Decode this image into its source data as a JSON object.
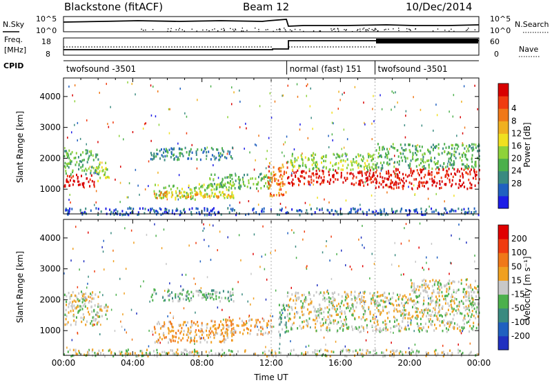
{
  "header": {
    "station": "Blackstone (fitACF)",
    "beam": "Beam 12",
    "date": "10/Dec/2014"
  },
  "params": {
    "nsky_label": "N.Sky",
    "nsearch_label": "N.Search",
    "nsky_ticks": [
      "10^5",
      "10^0"
    ],
    "nsearch_ticks": [
      "10^5",
      "10^0"
    ],
    "freq_label_line1": "Freq.",
    "freq_label_line2": "[MHz]",
    "freq_ticks": [
      "18",
      "8"
    ],
    "nave_label": "Nave",
    "nave_ticks": [
      "60",
      "0"
    ],
    "cpid_label": "CPID",
    "cpid_segments": [
      {
        "start_hr": 0,
        "end_hr": 12.9,
        "label": "twofsound -3501"
      },
      {
        "start_hr": 12.9,
        "end_hr": 18,
        "label": "normal (fast) 151"
      },
      {
        "start_hr": 18,
        "end_hr": 24,
        "label": "twofsound -3501"
      }
    ]
  },
  "chart_data": [
    {
      "type": "heatmap",
      "xlabel": "",
      "ylabel": "Slant Range [km]",
      "xlim": [
        0,
        24
      ],
      "ylim": [
        200,
        4600
      ],
      "y_ticks": [
        "1000",
        "2000",
        "3000",
        "4000"
      ],
      "y_tick_values": [
        1000,
        2000,
        3000,
        4000
      ],
      "colorbar": {
        "label": "Power [dB]",
        "colors": [
          "#1c1ce6",
          "#2060c0",
          "#3a8a80",
          "#4cb04c",
          "#8ed23a",
          "#f0e020",
          "#f0b020",
          "#f07818",
          "#f03c10",
          "#d80000"
        ],
        "tick_labels": [
          "4",
          "8",
          "12",
          "16",
          "20",
          "24",
          "28"
        ]
      },
      "regions": [
        {
          "t0": 0.0,
          "t1": 1.8,
          "r0": 1100,
          "r1": 1500,
          "level": 9
        },
        {
          "t0": 0.0,
          "t1": 2.0,
          "r0": 1500,
          "r1": 2300,
          "level": 3
        },
        {
          "t0": 1.8,
          "t1": 2.6,
          "r0": 1300,
          "r1": 1900,
          "level": 4
        },
        {
          "t0": 5.0,
          "t1": 9.8,
          "r0": 1980,
          "r1": 2380,
          "level": 2
        },
        {
          "t0": 5.2,
          "t1": 9.8,
          "r0": 700,
          "r1": 1200,
          "level": 4
        },
        {
          "t0": 5.2,
          "t1": 9.8,
          "r0": 750,
          "r1": 950,
          "level": 6
        },
        {
          "t0": 8.2,
          "t1": 12.0,
          "r0": 1050,
          "r1": 1550,
          "level": 3
        },
        {
          "t0": 11.8,
          "t1": 12.9,
          "r0": 800,
          "r1": 1900,
          "level": 7
        },
        {
          "t0": 12.9,
          "t1": 18.0,
          "r0": 1150,
          "r1": 1650,
          "level": 9
        },
        {
          "t0": 12.9,
          "t1": 18.0,
          "r0": 1650,
          "r1": 2200,
          "level": 4
        },
        {
          "t0": 18.0,
          "t1": 24.0,
          "r0": 1050,
          "r1": 1700,
          "level": 9
        },
        {
          "t0": 18.0,
          "t1": 24.0,
          "r0": 1700,
          "r1": 2500,
          "level": 3
        },
        {
          "t0": 0.0,
          "t1": 24.0,
          "r0": 200,
          "r1": 420,
          "level": 1
        }
      ]
    },
    {
      "type": "heatmap",
      "xlabel": "Time UT",
      "ylabel": "Slant Range [km]",
      "xlim": [
        0,
        24
      ],
      "ylim": [
        200,
        4600
      ],
      "x_ticks": [
        "00:00",
        "04:00",
        "08:00",
        "12:00",
        "16:00",
        "20:00",
        "00:00"
      ],
      "x_tick_values": [
        0,
        4,
        8,
        12,
        16,
        20,
        24
      ],
      "y_ticks": [
        "1000",
        "2000",
        "3000",
        "4000"
      ],
      "y_tick_values": [
        1000,
        2000,
        3000,
        4000
      ],
      "colorbar": {
        "label": "Velocity [m s⁻¹]",
        "colors": [
          "#2030c0",
          "#2060c0",
          "#3a8a80",
          "#4cb04c",
          "#c8c8c8",
          "#f0a020",
          "#f07818",
          "#f03c10",
          "#e00000"
        ],
        "tick_labels": [
          "200",
          "100",
          "50",
          "15",
          "-15",
          "-50",
          "-100",
          "-200"
        ]
      },
      "regions": [
        {
          "t0": 0.0,
          "t1": 2.0,
          "r0": 1200,
          "r1": 2300,
          "level": 4
        },
        {
          "t0": 1.8,
          "t1": 2.6,
          "r0": 1400,
          "r1": 1900,
          "level": 4
        },
        {
          "t0": 5.0,
          "t1": 9.8,
          "r0": 1980,
          "r1": 2380,
          "level": 3
        },
        {
          "t0": 5.2,
          "t1": 9.8,
          "r0": 650,
          "r1": 1350,
          "level": 5
        },
        {
          "t0": 9.0,
          "t1": 12.0,
          "r0": 900,
          "r1": 1400,
          "level": 5
        },
        {
          "t0": 12.4,
          "t1": 12.9,
          "r0": 800,
          "r1": 1900,
          "level": 3
        },
        {
          "t0": 12.9,
          "t1": 24.0,
          "r0": 1000,
          "r1": 2300,
          "level": 4
        },
        {
          "t0": 20.0,
          "t1": 24.0,
          "r0": 2300,
          "r1": 2700,
          "level": 4
        },
        {
          "t0": 0.0,
          "t1": 24.0,
          "r0": 200,
          "r1": 420,
          "level": 4
        }
      ]
    }
  ]
}
